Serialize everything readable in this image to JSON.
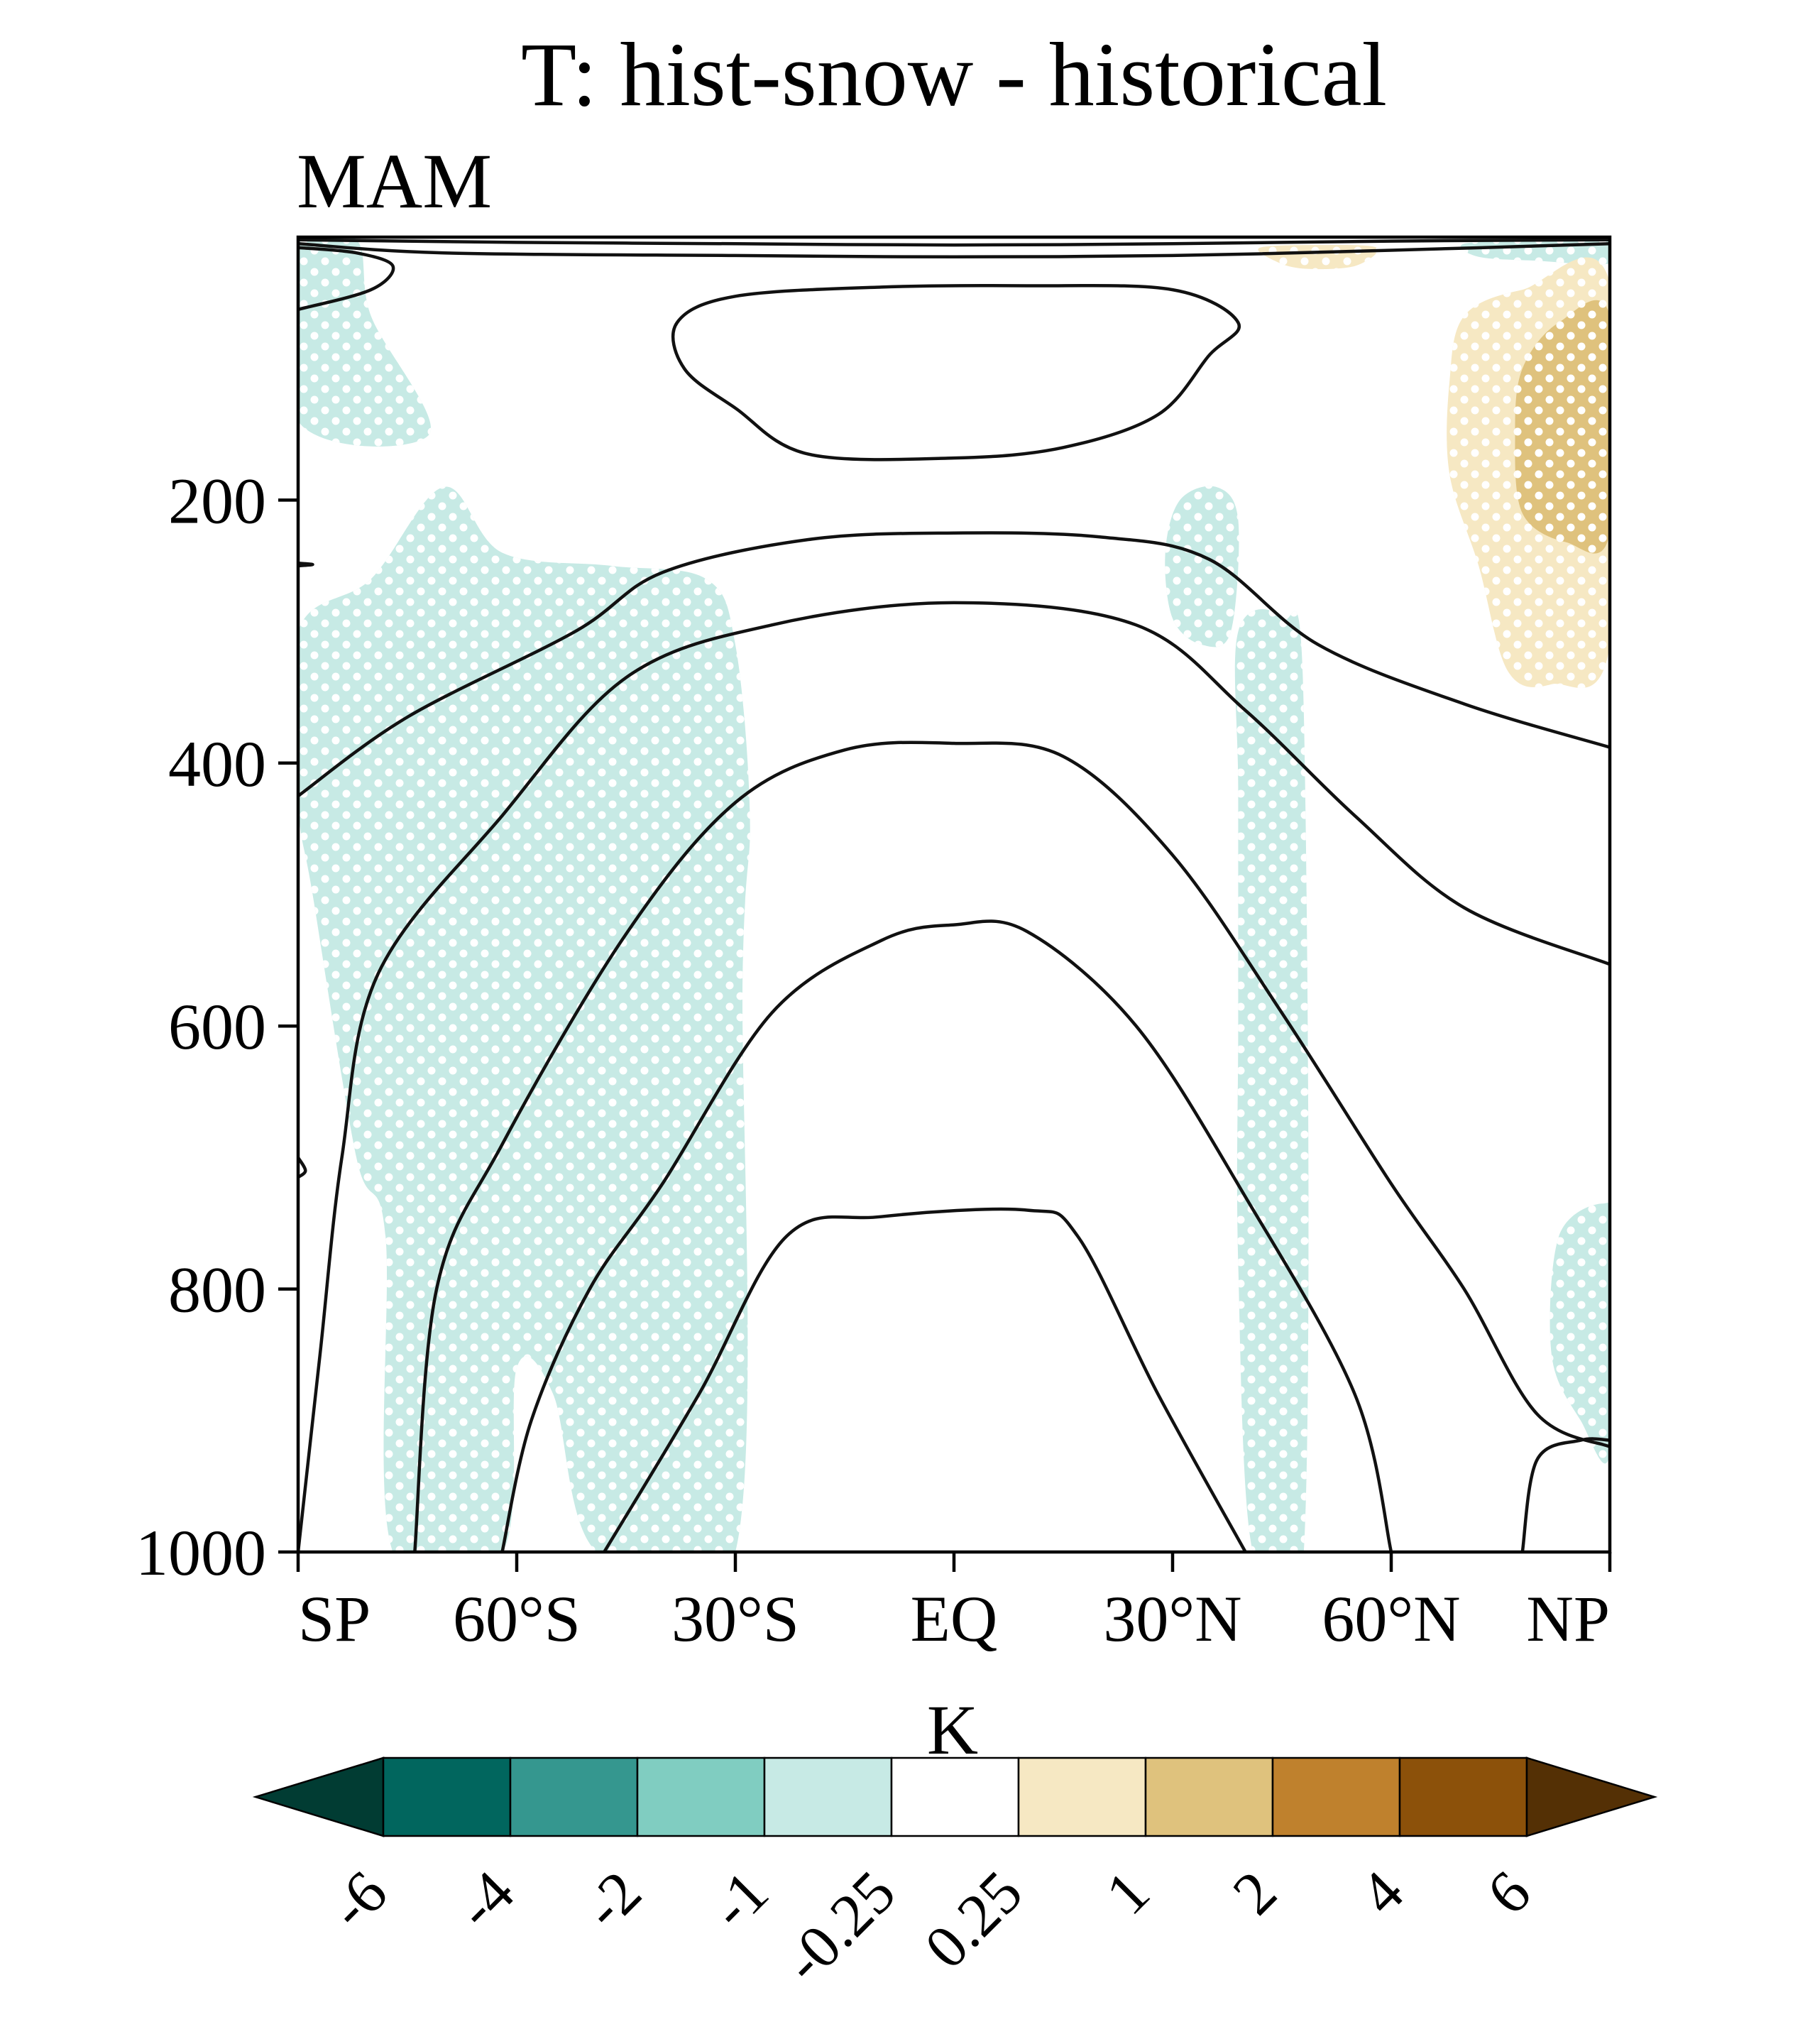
{
  "chart_data": {
    "type": "heatmap",
    "title": "T: hist-snow - historical",
    "subtitle": "MAM",
    "xlabel": "",
    "ylabel": "",
    "x_ticks": [
      {
        "value": -90,
        "label": "SP"
      },
      {
        "value": -60,
        "label": "60°S"
      },
      {
        "value": -30,
        "label": "30°S"
      },
      {
        "value": 0,
        "label": "EQ"
      },
      {
        "value": 30,
        "label": "30°N"
      },
      {
        "value": 60,
        "label": "60°N"
      },
      {
        "value": 90,
        "label": "NP"
      }
    ],
    "y_ticks": [
      {
        "value": 200,
        "label": "200"
      },
      {
        "value": 400,
        "label": "400"
      },
      {
        "value": 600,
        "label": "600"
      },
      {
        "value": 800,
        "label": "800"
      },
      {
        "value": 1000,
        "label": "1000"
      }
    ],
    "xlim": [
      -90,
      90
    ],
    "ylim": [
      1000,
      0
    ],
    "grid": false,
    "colorbar": {
      "unit": "K",
      "levels": [
        "-6",
        "-4",
        "-2",
        "-1",
        "-0.25",
        "0.25",
        "1",
        "2",
        "4",
        "6"
      ],
      "colors": [
        "#013c33",
        "#01665e",
        "#35978f",
        "#80cdc1",
        "#c7eae5",
        "#ffffff",
        "#f6e8c3",
        "#dfc27d",
        "#bf812d",
        "#8c510a",
        "#543005"
      ],
      "extend": "both",
      "placement": "bottom"
    },
    "stippling": "white dots mark significant regions",
    "anomaly_regions": [
      {
        "level": "-1 to -0.25",
        "color": "#c7eae5",
        "stippled": true,
        "points": [
          [
            -90,
            5
          ],
          [
            -82,
            2
          ],
          [
            -80,
            60
          ],
          [
            -72,
            150
          ],
          [
            -90,
            140
          ]
        ]
      },
      {
        "level": "-1 to -0.25",
        "color": "#c7eae5",
        "stippled": true,
        "points": [
          [
            -90,
            300
          ],
          [
            -80,
            260
          ],
          [
            -70,
            190
          ],
          [
            -62,
            240
          ],
          [
            -47,
            250
          ],
          [
            -34,
            260
          ],
          [
            -30,
            310
          ],
          [
            -28,
            440
          ],
          [
            -29,
            560
          ],
          [
            -30,
            1000
          ],
          [
            -49,
            1000
          ],
          [
            -55,
            880
          ],
          [
            -60,
            860
          ],
          [
            -62,
            1000
          ],
          [
            -77,
            1000
          ],
          [
            -78,
            760
          ],
          [
            -82,
            700
          ],
          [
            -88,
            500
          ],
          [
            -90,
            430
          ]
        ]
      },
      {
        "level": "-1 to -0.25",
        "color": "#c7eae5",
        "stippled": true,
        "points": [
          [
            31,
            200
          ],
          [
            36,
            190
          ],
          [
            39,
            215
          ],
          [
            38,
            300
          ],
          [
            34,
            310
          ],
          [
            30,
            290
          ],
          [
            29,
            240
          ]
        ]
      },
      {
        "level": "-1 to -0.25",
        "color": "#c7eae5",
        "stippled": true,
        "points": [
          [
            39,
            300
          ],
          [
            45,
            290
          ],
          [
            48,
            360
          ],
          [
            48,
            1000
          ],
          [
            41,
            1000
          ],
          [
            39,
            780
          ],
          [
            39,
            600
          ],
          [
            39,
            420
          ]
        ]
      },
      {
        "level": "-1 to -0.25",
        "color": "#c7eae5",
        "stippled": true,
        "points": [
          [
            83,
            760
          ],
          [
            89,
            735
          ],
          [
            90,
            760
          ],
          [
            90,
            925
          ],
          [
            86,
            900
          ],
          [
            82,
            850
          ]
        ]
      },
      {
        "level": "-1 to -0.25",
        "color": "#c7eae5",
        "stippled": true,
        "points": [
          [
            70,
            5
          ],
          [
            80,
            3
          ],
          [
            90,
            3
          ],
          [
            90,
            20
          ],
          [
            80,
            18
          ],
          [
            72,
            15
          ]
        ]
      },
      {
        "level": "0.25 to 1",
        "color": "#f6e8c3",
        "stippled": true,
        "points": [
          [
            68,
            110
          ],
          [
            70,
            60
          ],
          [
            78,
            40
          ],
          [
            90,
            35
          ],
          [
            90,
            310
          ],
          [
            82,
            340
          ],
          [
            76,
            330
          ],
          [
            72,
            250
          ],
          [
            68,
            180
          ]
        ]
      },
      {
        "level": "0.25 to 1",
        "color": "#f6e8c3",
        "stippled": true,
        "points": [
          [
            42,
            8
          ],
          [
            50,
            6
          ],
          [
            58,
            8
          ],
          [
            55,
            22
          ],
          [
            48,
            24
          ],
          [
            44,
            18
          ]
        ]
      },
      {
        "level": "1 to 2",
        "color": "#dfc27d",
        "stippled": true,
        "points": [
          [
            77,
            150
          ],
          [
            78,
            100
          ],
          [
            83,
            65
          ],
          [
            90,
            60
          ],
          [
            90,
            225
          ],
          [
            84,
            232
          ],
          [
            78,
            210
          ]
        ]
      }
    ],
    "contours": [
      {
        "points": [
          [
            -90,
            5
          ],
          [
            -70,
            12
          ],
          [
            -30,
            14
          ],
          [
            0,
            15
          ],
          [
            30,
            14
          ],
          [
            60,
            10
          ],
          [
            90,
            5
          ]
        ]
      },
      {
        "points": [
          [
            -90,
            2
          ],
          [
            -60,
            4
          ],
          [
            -30,
            5
          ],
          [
            0,
            6
          ],
          [
            30,
            5
          ],
          [
            60,
            3
          ],
          [
            90,
            2
          ]
        ]
      },
      {
        "points": [
          [
            -90,
            8
          ],
          [
            -82,
            12
          ],
          [
            -77,
            22
          ],
          [
            -80,
            40
          ],
          [
            -90,
            55
          ]
        ]
      },
      {
        "points": [
          [
            -38,
            65
          ],
          [
            -30,
            45
          ],
          [
            -10,
            38
          ],
          [
            10,
            37
          ],
          [
            30,
            40
          ],
          [
            39,
            65
          ],
          [
            35,
            90
          ],
          [
            28,
            135
          ],
          [
            15,
            160
          ],
          [
            0,
            168
          ],
          [
            -20,
            165
          ],
          [
            -30,
            130
          ],
          [
            -37,
            100
          ],
          [
            -38,
            65
          ]
        ]
      },
      {
        "points": [
          [
            -90,
            425
          ],
          [
            -75,
            365
          ],
          [
            -52,
            300
          ],
          [
            -40,
            255
          ],
          [
            -20,
            230
          ],
          [
            0,
            225
          ],
          [
            20,
            228
          ],
          [
            35,
            245
          ],
          [
            50,
            310
          ],
          [
            70,
            355
          ],
          [
            90,
            388
          ]
        ]
      },
      {
        "points": [
          [
            -90,
            1000
          ],
          [
            -87,
            850
          ],
          [
            -84,
            700
          ],
          [
            -79,
            560
          ],
          [
            -62,
            440
          ],
          [
            -45,
            335
          ],
          [
            -25,
            295
          ],
          [
            0,
            278
          ],
          [
            25,
            295
          ],
          [
            40,
            360
          ],
          [
            55,
            440
          ],
          [
            70,
            510
          ],
          [
            90,
            553
          ]
        ]
      },
      {
        "points": [
          [
            -74,
            1000
          ],
          [
            -71,
            800
          ],
          [
            -62,
            690
          ],
          [
            -45,
            530
          ],
          [
            -30,
            430
          ],
          [
            -15,
            390
          ],
          [
            0,
            385
          ],
          [
            15,
            395
          ],
          [
            30,
            470
          ],
          [
            45,
            590
          ],
          [
            60,
            720
          ],
          [
            70,
            800
          ],
          [
            80,
            895
          ],
          [
            90,
            920
          ]
        ]
      },
      {
        "points": [
          [
            -62,
            1000
          ],
          [
            -58,
            900
          ],
          [
            -50,
            800
          ],
          [
            -40,
            720
          ],
          [
            -25,
            590
          ],
          [
            -10,
            535
          ],
          [
            0,
            523
          ],
          [
            10,
            528
          ],
          [
            25,
            600
          ],
          [
            40,
            730
          ],
          [
            55,
            880
          ],
          [
            60,
            1000
          ]
        ]
      },
      {
        "points": [
          [
            -48,
            1000
          ],
          [
            -35,
            880
          ],
          [
            -23,
            760
          ],
          [
            -10,
            745
          ],
          [
            10,
            740
          ],
          [
            17,
            760
          ],
          [
            28,
            880
          ],
          [
            40,
            1000
          ]
        ]
      },
      {
        "points": [
          [
            78,
            1000
          ],
          [
            80,
            930
          ],
          [
            86,
            915
          ],
          [
            90,
            915
          ]
        ]
      },
      {
        "points": [
          [
            -90,
            700
          ],
          [
            -89,
            710
          ],
          [
            -90,
            715
          ]
        ]
      },
      {
        "points": [
          [
            -90,
            248
          ],
          [
            -88,
            249
          ],
          [
            -90,
            250
          ]
        ]
      }
    ]
  }
}
